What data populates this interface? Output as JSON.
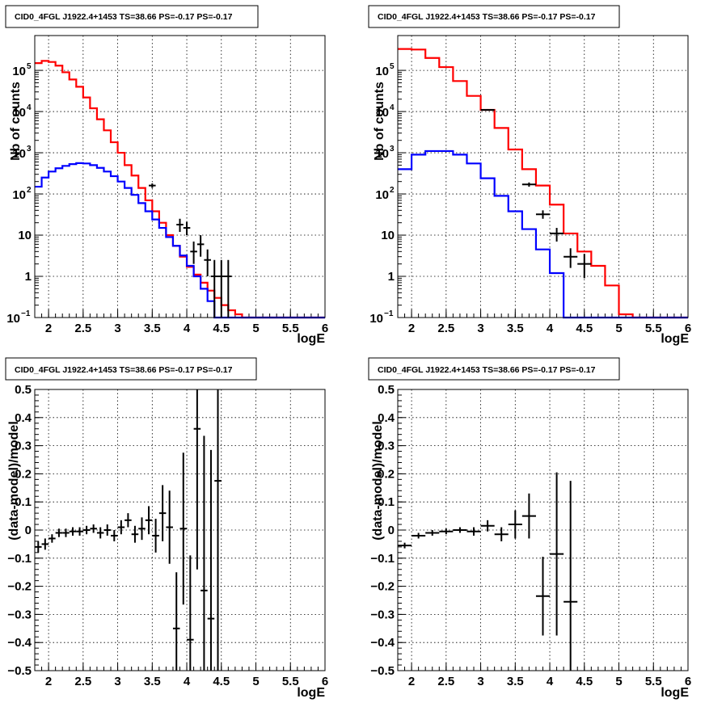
{
  "chart_data": [
    {
      "type": "line",
      "title": "CID0_4FGL J1922.4+1453 TS=38.66 PS=-0.17 PS=-0.17",
      "xlabel": "logE",
      "ylabel": "Nb of counts",
      "xlim": [
        1.8,
        6.0
      ],
      "ylim": [
        0.1,
        700000
      ],
      "yscale": "log",
      "grid": true,
      "x_ticks": [
        "2",
        "2.5",
        "3",
        "3.5",
        "4",
        "4.5",
        "5",
        "5.5",
        "6"
      ],
      "y_ticks": [
        {
          "value": 0.1,
          "base": "10",
          "exp": "−1"
        },
        {
          "value": 1,
          "label": "1"
        },
        {
          "value": 10,
          "label": "10"
        },
        {
          "value": 100,
          "base": "10",
          "exp": "2"
        },
        {
          "value": 1000,
          "base": "10",
          "exp": "3"
        },
        {
          "value": 10000,
          "base": "10",
          "exp": "4"
        },
        {
          "value": 100000,
          "base": "10",
          "exp": "5"
        }
      ],
      "series": [
        {
          "color": "#ff0000",
          "kind": "step",
          "edges": [
            1.8,
            1.9,
            2.0,
            2.1,
            2.2,
            2.3,
            2.4,
            2.5,
            2.6,
            2.7,
            2.8,
            2.9,
            3.0,
            3.1,
            3.2,
            3.3,
            3.4,
            3.5,
            3.6,
            3.7,
            3.8,
            3.9,
            4.0,
            4.1,
            4.2,
            4.3,
            4.4,
            4.5,
            4.6,
            4.7,
            4.8,
            4.9,
            5.0,
            5.1,
            5.2,
            5.3,
            5.4,
            5.5,
            5.6,
            5.7,
            5.8,
            5.9,
            6.0
          ],
          "values": [
            150000,
            170000,
            160000,
            130000,
            90000,
            60000,
            40000,
            22000,
            12000,
            6500,
            3500,
            1800,
            1000,
            500,
            280,
            140,
            70,
            38,
            20,
            10,
            5.5,
            3,
            1.7,
            1.1,
            0.7,
            0.45,
            0.3,
            0.2,
            0.15,
            0.12,
            0.1,
            0.1,
            0.1,
            0.1,
            0.1,
            0.1,
            0.1,
            0.1,
            0.1,
            0.1,
            0.1,
            0.1
          ]
        },
        {
          "color": "#0000ff",
          "kind": "step",
          "edges": [
            1.8,
            1.9,
            2.0,
            2.1,
            2.2,
            2.3,
            2.4,
            2.5,
            2.6,
            2.7,
            2.8,
            2.9,
            3.0,
            3.1,
            3.2,
            3.3,
            3.4,
            3.5,
            3.6,
            3.7,
            3.8,
            3.9,
            4.0,
            4.1,
            4.2,
            4.3,
            4.4,
            4.5,
            4.6,
            4.7,
            4.8,
            4.9,
            5.0,
            5.1,
            5.2,
            5.3,
            5.4,
            5.5,
            5.6,
            5.7,
            5.8,
            5.9,
            6.0
          ],
          "values": [
            150,
            250,
            350,
            420,
            480,
            530,
            560,
            550,
            500,
            430,
            350,
            270,
            200,
            140,
            95,
            60,
            38,
            24,
            15,
            9,
            5.5,
            3.2,
            1.8,
            1.0,
            0.5,
            0.25,
            0.1,
            0.1,
            0.1,
            0.1,
            0.1,
            0.1,
            0.1,
            0.1,
            0.1,
            0.1,
            0.1,
            0.1,
            0.1,
            0.1,
            0.1,
            0.1
          ]
        }
      ],
      "data_points": [
        {
          "x": 3.5,
          "y": 160,
          "xerr": 0.05,
          "ylo": 140,
          "yhi": 180
        },
        {
          "x": 3.9,
          "y": 18,
          "xerr": 0.05,
          "ylo": 12,
          "yhi": 25
        },
        {
          "x": 4.0,
          "y": 15,
          "xerr": 0.05,
          "ylo": 10,
          "yhi": 21
        },
        {
          "x": 4.1,
          "y": 4,
          "xerr": 0.05,
          "ylo": 2,
          "yhi": 7
        },
        {
          "x": 4.2,
          "y": 6,
          "xerr": 0.05,
          "ylo": 3,
          "yhi": 10
        },
        {
          "x": 4.3,
          "y": 2.5,
          "xerr": 0.05,
          "ylo": 1,
          "yhi": 4.5
        },
        {
          "x": 4.4,
          "y": 1,
          "xerr": 0.05,
          "ylo": 0.1,
          "yhi": 2.5
        },
        {
          "x": 4.5,
          "y": 1,
          "xerr": 0.05,
          "ylo": 0.1,
          "yhi": 2.5
        },
        {
          "x": 4.6,
          "y": 1,
          "xerr": 0.05,
          "ylo": 0.1,
          "yhi": 2.5
        }
      ]
    },
    {
      "type": "line",
      "title": "CID0_4FGL J1922.4+1453 TS=38.66 PS=-0.17 PS=-0.17",
      "xlabel": "logE",
      "ylabel": "Nb of counts",
      "xlim": [
        1.8,
        6.0
      ],
      "ylim": [
        0.1,
        700000
      ],
      "yscale": "log",
      "grid": true,
      "x_ticks": [
        "2",
        "2.5",
        "3",
        "3.5",
        "4",
        "4.5",
        "5",
        "5.5",
        "6"
      ],
      "y_ticks": [
        {
          "value": 0.1,
          "base": "10",
          "exp": "−1"
        },
        {
          "value": 1,
          "label": "1"
        },
        {
          "value": 10,
          "label": "10"
        },
        {
          "value": 100,
          "base": "10",
          "exp": "2"
        },
        {
          "value": 1000,
          "base": "10",
          "exp": "3"
        },
        {
          "value": 10000,
          "base": "10",
          "exp": "4"
        },
        {
          "value": 100000,
          "base": "10",
          "exp": "5"
        }
      ],
      "series": [
        {
          "color": "#ff0000",
          "kind": "step",
          "edges": [
            1.8,
            2.0,
            2.2,
            2.4,
            2.6,
            2.8,
            3.0,
            3.2,
            3.4,
            3.6,
            3.8,
            4.0,
            4.2,
            4.4,
            4.6,
            4.8,
            5.0,
            5.2,
            5.4,
            5.6,
            5.8,
            6.0
          ],
          "values": [
            330000,
            320000,
            200000,
            120000,
            55000,
            24000,
            11000,
            4000,
            1200,
            400,
            160,
            55,
            11,
            4,
            1.8,
            0.6,
            0.12,
            0.1,
            0.1,
            0.1,
            0.1
          ]
        },
        {
          "color": "#0000ff",
          "kind": "step",
          "edges": [
            1.8,
            2.0,
            2.2,
            2.4,
            2.6,
            2.8,
            3.0,
            3.2,
            3.4,
            3.6,
            3.8,
            4.0,
            4.2,
            4.4,
            4.6,
            4.8,
            5.0,
            5.2,
            5.4,
            5.6,
            5.8,
            6.0
          ],
          "values": [
            400,
            900,
            1100,
            1100,
            900,
            550,
            240,
            90,
            38,
            14,
            4.5,
            1.2,
            0.1,
            0.1,
            0.1,
            0.1,
            0.1,
            0.1,
            0.1,
            0.1,
            0.1
          ]
        }
      ],
      "data_points": [
        {
          "x": 3.1,
          "y": 11000,
          "xerr": 0.1,
          "ylo": 10500,
          "yhi": 11500
        },
        {
          "x": 3.7,
          "y": 170,
          "xerr": 0.1,
          "ylo": 150,
          "yhi": 190
        },
        {
          "x": 3.9,
          "y": 32,
          "xerr": 0.1,
          "ylo": 25,
          "yhi": 40
        },
        {
          "x": 4.1,
          "y": 11,
          "xerr": 0.1,
          "ylo": 7,
          "yhi": 15
        },
        {
          "x": 4.3,
          "y": 3,
          "xerr": 0.1,
          "ylo": 1.6,
          "yhi": 4.8
        },
        {
          "x": 4.5,
          "y": 2,
          "xerr": 0.1,
          "ylo": 0.9,
          "yhi": 3.5
        }
      ]
    },
    {
      "type": "scatter",
      "title": "CID0_4FGL J1922.4+1453 TS=38.66 PS=-0.17 PS=-0.17",
      "xlabel": "logE",
      "ylabel": "(data-model)/model",
      "xlim": [
        1.8,
        6.0
      ],
      "ylim": [
        -0.5,
        0.5
      ],
      "grid": true,
      "x_ticks": [
        "2",
        "2.5",
        "3",
        "3.5",
        "4",
        "4.5",
        "5",
        "5.5",
        "6"
      ],
      "y_ticks": [
        "−0.5",
        "−0.4",
        "−0.3",
        "−0.2",
        "−0.1",
        "0",
        "0.1",
        "0.2",
        "0.3",
        "0.4",
        "0.5"
      ],
      "points": [
        {
          "x": 1.85,
          "y": -0.06,
          "xerr": 0.05,
          "yerr": 0.02
        },
        {
          "x": 1.95,
          "y": -0.05,
          "xerr": 0.05,
          "yerr": 0.02
        },
        {
          "x": 2.05,
          "y": -0.03,
          "xerr": 0.05,
          "yerr": 0.015
        },
        {
          "x": 2.15,
          "y": -0.01,
          "xerr": 0.05,
          "yerr": 0.015
        },
        {
          "x": 2.25,
          "y": -0.01,
          "xerr": 0.05,
          "yerr": 0.015
        },
        {
          "x": 2.35,
          "y": -0.005,
          "xerr": 0.05,
          "yerr": 0.015
        },
        {
          "x": 2.45,
          "y": -0.005,
          "xerr": 0.05,
          "yerr": 0.015
        },
        {
          "x": 2.55,
          "y": 0.0,
          "xerr": 0.05,
          "yerr": 0.015
        },
        {
          "x": 2.65,
          "y": 0.005,
          "xerr": 0.05,
          "yerr": 0.015
        },
        {
          "x": 2.75,
          "y": -0.01,
          "xerr": 0.05,
          "yerr": 0.02
        },
        {
          "x": 2.85,
          "y": 0.0,
          "xerr": 0.05,
          "yerr": 0.02
        },
        {
          "x": 2.95,
          "y": -0.02,
          "xerr": 0.05,
          "yerr": 0.02
        },
        {
          "x": 3.05,
          "y": 0.01,
          "xerr": 0.05,
          "yerr": 0.025
        },
        {
          "x": 3.15,
          "y": 0.035,
          "xerr": 0.05,
          "yerr": 0.025
        },
        {
          "x": 3.25,
          "y": -0.015,
          "xerr": 0.05,
          "yerr": 0.03
        },
        {
          "x": 3.35,
          "y": 0.005,
          "xerr": 0.05,
          "yerr": 0.04
        },
        {
          "x": 3.45,
          "y": 0.035,
          "xerr": 0.05,
          "yerr": 0.05
        },
        {
          "x": 3.55,
          "y": -0.02,
          "xerr": 0.05,
          "yerr": 0.06
        },
        {
          "x": 3.65,
          "y": 0.06,
          "xerr": 0.05,
          "yerr": 0.1
        },
        {
          "x": 3.75,
          "y": 0.01,
          "xerr": 0.05,
          "yerr": 0.13
        },
        {
          "x": 3.85,
          "y": -0.35,
          "xerr": 0.05,
          "yerr": 0.2
        },
        {
          "x": 3.95,
          "y": 0.005,
          "xerr": 0.05,
          "yerr": 0.27
        },
        {
          "x": 4.05,
          "y": -0.39,
          "xerr": 0.05,
          "yerr": 0.3
        },
        {
          "x": 4.15,
          "y": 0.36,
          "xerr": 0.05,
          "yerr": 0.5
        },
        {
          "x": 4.25,
          "y": -0.215,
          "xerr": 0.05,
          "yerr": 0.55
        },
        {
          "x": 4.35,
          "y": -0.315,
          "xerr": 0.05,
          "yerr": 0.6
        },
        {
          "x": 4.45,
          "y": 0.175,
          "xerr": 0.05,
          "yerr": 0.7
        }
      ]
    },
    {
      "type": "scatter",
      "title": "CID0_4FGL J1922.4+1453 TS=38.66 PS=-0.17 PS=-0.17",
      "xlabel": "logE",
      "ylabel": "(data-model)/model",
      "xlim": [
        1.8,
        6.0
      ],
      "ylim": [
        -0.5,
        0.5
      ],
      "grid": true,
      "x_ticks": [
        "2",
        "2.5",
        "3",
        "3.5",
        "4",
        "4.5",
        "5",
        "5.5",
        "6"
      ],
      "y_ticks": [
        "−0.5",
        "−0.4",
        "−0.3",
        "−0.2",
        "−0.1",
        "0",
        "0.1",
        "0.2",
        "0.3",
        "0.4",
        "0.5"
      ],
      "points": [
        {
          "x": 1.9,
          "y": -0.055,
          "xerr": 0.1,
          "yerr": 0.01
        },
        {
          "x": 2.1,
          "y": -0.02,
          "xerr": 0.1,
          "yerr": 0.01
        },
        {
          "x": 2.3,
          "y": -0.01,
          "xerr": 0.1,
          "yerr": 0.01
        },
        {
          "x": 2.5,
          "y": -0.005,
          "xerr": 0.1,
          "yerr": 0.01
        },
        {
          "x": 2.7,
          "y": 0.0,
          "xerr": 0.1,
          "yerr": 0.01
        },
        {
          "x": 2.9,
          "y": -0.005,
          "xerr": 0.1,
          "yerr": 0.015
        },
        {
          "x": 3.1,
          "y": 0.015,
          "xerr": 0.1,
          "yerr": 0.02
        },
        {
          "x": 3.3,
          "y": -0.015,
          "xerr": 0.1,
          "yerr": 0.025
        },
        {
          "x": 3.5,
          "y": 0.02,
          "xerr": 0.1,
          "yerr": 0.05
        },
        {
          "x": 3.7,
          "y": 0.05,
          "xerr": 0.1,
          "yerr": 0.08
        },
        {
          "x": 3.9,
          "y": -0.235,
          "xerr": 0.1,
          "yerr": 0.14
        },
        {
          "x": 4.1,
          "y": -0.085,
          "xerr": 0.1,
          "yerr": 0.29
        },
        {
          "x": 4.3,
          "y": -0.255,
          "xerr": 0.1,
          "yerr": 0.43
        }
      ]
    }
  ]
}
